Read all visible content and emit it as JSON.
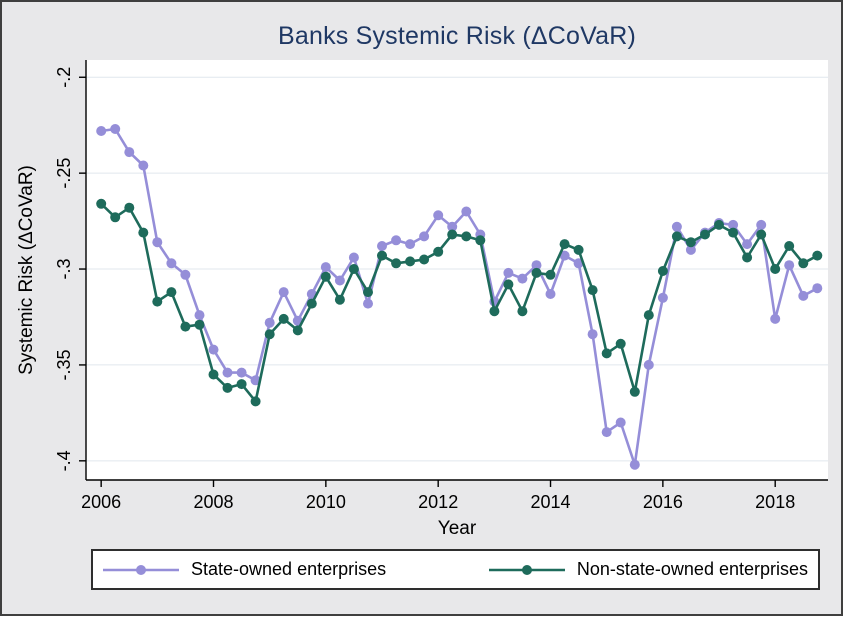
{
  "figure": {
    "title": "Banks Systemic Risk (ΔCoVaR)",
    "title_color": "#1f3864",
    "background_color": "#e8e8ea",
    "plot_background_color": "#ffffff",
    "border_color": "#3f3f3f",
    "gridline_color": "#e0e7ee"
  },
  "legend": {
    "items": [
      {
        "label": "State-owned enterprises",
        "color": "#958ed8"
      },
      {
        "label": "Non-state-owned enterprises",
        "color": "#1e6b5b"
      }
    ]
  },
  "chart_data": {
    "type": "line",
    "title": "Banks Systemic Risk (ΔCoVaR)",
    "xlabel": "Year",
    "ylabel": "Systemic Risk (ΔCoVaR)",
    "grid": "horizontal",
    "legend_position": "bottom",
    "xlim": [
      2005.73,
      2018.94
    ],
    "ylim": [
      -0.41,
      -0.191
    ],
    "x_tick_labels": [
      "2006",
      "2008",
      "2010",
      "2012",
      "2014",
      "2016",
      "2018"
    ],
    "x_tick_values": [
      2006,
      2008,
      2010,
      2012,
      2014,
      2016,
      2018
    ],
    "y_ticks": [
      {
        "v": -0.2,
        "label": "-.2"
      },
      {
        "v": -0.25,
        "label": "-.25"
      },
      {
        "v": -0.3,
        "label": "-.3"
      },
      {
        "v": -0.35,
        "label": "-.35"
      },
      {
        "v": -0.4,
        "label": "-.4"
      }
    ],
    "x": [
      2006.0,
      2006.25,
      2006.5,
      2006.75,
      2007.0,
      2007.25,
      2007.5,
      2007.75,
      2008.0,
      2008.25,
      2008.5,
      2008.75,
      2009.0,
      2009.25,
      2009.5,
      2009.75,
      2010.0,
      2010.25,
      2010.5,
      2010.75,
      2011.0,
      2011.25,
      2011.5,
      2011.75,
      2012.0,
      2012.25,
      2012.5,
      2012.75,
      2013.0,
      2013.25,
      2013.5,
      2013.75,
      2014.0,
      2014.25,
      2014.5,
      2014.75,
      2015.0,
      2015.25,
      2015.5,
      2015.75,
      2016.0,
      2016.25,
      2016.5,
      2016.75,
      2017.0,
      2017.25,
      2017.5,
      2017.75,
      2018.0,
      2018.25,
      2018.5,
      2018.75
    ],
    "series": [
      {
        "name": "State-owned enterprises",
        "color": "#958ed8",
        "marker": "circle",
        "values": [
          -0.228,
          -0.227,
          -0.239,
          -0.246,
          -0.286,
          -0.297,
          -0.303,
          -0.324,
          -0.342,
          -0.354,
          -0.354,
          -0.358,
          -0.328,
          -0.312,
          -0.327,
          -0.313,
          -0.299,
          -0.306,
          -0.294,
          -0.318,
          -0.288,
          -0.285,
          -0.287,
          -0.283,
          -0.272,
          -0.278,
          -0.27,
          -0.282,
          -0.317,
          -0.302,
          -0.305,
          -0.298,
          -0.313,
          -0.293,
          -0.297,
          -0.334,
          -0.385,
          -0.38,
          -0.402,
          -0.35,
          -0.315,
          -0.278,
          -0.29,
          -0.281,
          -0.276,
          -0.277,
          -0.287,
          -0.277,
          -0.326,
          -0.298,
          -0.314,
          -0.31
        ]
      },
      {
        "name": "Non-state-owned enterprises",
        "color": "#1e6b5b",
        "marker": "circle",
        "values": [
          -0.266,
          -0.273,
          -0.268,
          -0.281,
          -0.317,
          -0.312,
          -0.33,
          -0.329,
          -0.355,
          -0.362,
          -0.36,
          -0.369,
          -0.334,
          -0.326,
          -0.332,
          -0.318,
          -0.304,
          -0.316,
          -0.3,
          -0.312,
          -0.293,
          -0.297,
          -0.296,
          -0.295,
          -0.291,
          -0.282,
          -0.283,
          -0.285,
          -0.322,
          -0.308,
          -0.322,
          -0.302,
          -0.303,
          -0.287,
          -0.29,
          -0.311,
          -0.344,
          -0.339,
          -0.364,
          -0.324,
          -0.301,
          -0.283,
          -0.286,
          -0.282,
          -0.277,
          -0.281,
          -0.294,
          -0.282,
          -0.3,
          -0.288,
          -0.297,
          -0.293
        ]
      }
    ]
  }
}
